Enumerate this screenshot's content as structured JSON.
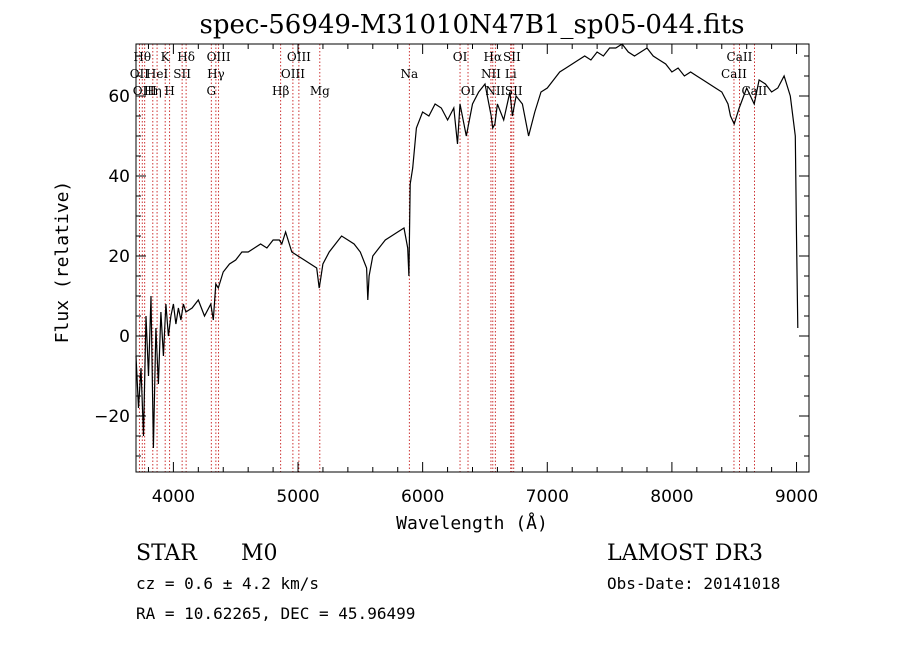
{
  "chart_data": {
    "type": "line",
    "title": "spec-56949-M31010N47B1_sp05-044.fits",
    "xlabel": "Wavelength (Å)",
    "ylabel": "Flux (relative)",
    "xlim": [
      3700,
      9100
    ],
    "ylim": [
      -34,
      73
    ],
    "xticks": [
      4000,
      5000,
      6000,
      7000,
      8000,
      9000
    ],
    "yticks": [
      -20,
      0,
      20,
      40,
      60
    ],
    "series": [
      {
        "name": "flux",
        "x": [
          3700,
          3720,
          3740,
          3760,
          3780,
          3800,
          3820,
          3840,
          3860,
          3880,
          3900,
          3920,
          3940,
          3960,
          3980,
          4000,
          4020,
          4040,
          4060,
          4080,
          4100,
          4150,
          4200,
          4250,
          4300,
          4320,
          4340,
          4360,
          4400,
          4450,
          4500,
          4550,
          4600,
          4650,
          4700,
          4750,
          4800,
          4850,
          4870,
          4900,
          4950,
          5000,
          5050,
          5100,
          5150,
          5170,
          5180,
          5200,
          5250,
          5300,
          5350,
          5400,
          5450,
          5500,
          5550,
          5560,
          5570,
          5600,
          5650,
          5700,
          5750,
          5800,
          5850,
          5880,
          5890,
          5900,
          5920,
          5950,
          6000,
          6050,
          6100,
          6150,
          6200,
          6250,
          6280,
          6300,
          6350,
          6400,
          6450,
          6500,
          6550,
          6562,
          6580,
          6600,
          6650,
          6700,
          6720,
          6750,
          6800,
          6850,
          6900,
          6950,
          7000,
          7050,
          7100,
          7150,
          7200,
          7250,
          7300,
          7350,
          7400,
          7450,
          7500,
          7550,
          7600,
          7650,
          7700,
          7750,
          7800,
          7850,
          7900,
          7950,
          8000,
          8050,
          8100,
          8150,
          8200,
          8250,
          8300,
          8350,
          8400,
          8450,
          8470,
          8500,
          8540,
          8600,
          8660,
          8700,
          8750,
          8800,
          8850,
          8900,
          8950,
          8990,
          9000,
          9010
        ],
        "values": [
          -5,
          -18,
          -8,
          -25,
          5,
          -10,
          10,
          -28,
          2,
          -12,
          6,
          -5,
          8,
          0,
          5,
          8,
          3,
          7,
          4,
          8,
          6,
          7,
          9,
          5,
          8,
          4,
          13,
          12,
          16,
          18,
          19,
          21,
          21,
          22,
          23,
          22,
          24,
          24,
          23,
          26,
          21,
          20,
          19,
          18,
          17,
          12,
          14,
          18,
          21,
          23,
          25,
          24,
          23,
          21,
          17,
          9,
          15,
          20,
          22,
          24,
          25,
          26,
          27,
          22,
          15,
          38,
          42,
          52,
          56,
          55,
          58,
          57,
          54,
          57,
          48,
          58,
          50,
          58,
          61,
          63,
          55,
          52,
          53,
          58,
          54,
          61,
          55,
          60,
          58,
          50,
          56,
          61,
          62,
          64,
          66,
          67,
          68,
          69,
          70,
          69,
          71,
          70,
          72,
          72,
          73,
          71,
          70,
          71,
          72,
          70,
          69,
          68,
          66,
          67,
          65,
          66,
          65,
          64,
          63,
          62,
          61,
          58,
          55,
          53,
          57,
          62,
          58,
          64,
          63,
          61,
          62,
          65,
          60,
          50,
          25,
          2
        ]
      }
    ],
    "spectral_lines": [
      {
        "wavelength": 3727,
        "label": "OII",
        "row": 2
      },
      {
        "wavelength": 3750,
        "label": "Hθ",
        "row": 1
      },
      {
        "wavelength": 3770,
        "label": "OIII",
        "row": 3
      },
      {
        "wavelength": 3835,
        "label": "Hη",
        "row": 3
      },
      {
        "wavelength": 3869,
        "label": "HeI",
        "row": 2
      },
      {
        "wavelength": 3934,
        "label": "K",
        "row": 1
      },
      {
        "wavelength": 3970,
        "label": "H",
        "row": 3
      },
      {
        "wavelength": 4070,
        "label": "SII",
        "row": 2
      },
      {
        "wavelength": 4102,
        "label": "Hδ",
        "row": 1
      },
      {
        "wavelength": 4304,
        "label": "G",
        "row": 3
      },
      {
        "wavelength": 4341,
        "label": "Hγ",
        "row": 2
      },
      {
        "wavelength": 4363,
        "label": "OIII",
        "row": 1
      },
      {
        "wavelength": 4861,
        "label": "Hβ",
        "row": 3
      },
      {
        "wavelength": 4959,
        "label": "OIII",
        "row": 2
      },
      {
        "wavelength": 5007,
        "label": "OIII",
        "row": 1
      },
      {
        "wavelength": 5175,
        "label": "Mg",
        "row": 3
      },
      {
        "wavelength": 5893,
        "label": "Na",
        "row": 2
      },
      {
        "wavelength": 6300,
        "label": "OI",
        "row": 1
      },
      {
        "wavelength": 6364,
        "label": "OI",
        "row": 3
      },
      {
        "wavelength": 6548,
        "label": "NII",
        "row": 2
      },
      {
        "wavelength": 6563,
        "label": "Hα",
        "row": 1
      },
      {
        "wavelength": 6583,
        "label": "NII",
        "row": 3
      },
      {
        "wavelength": 6707,
        "label": "Li",
        "row": 2
      },
      {
        "wavelength": 6716,
        "label": "SII",
        "row": 1
      },
      {
        "wavelength": 6731,
        "label": "SII",
        "row": 3
      },
      {
        "wavelength": 8498,
        "label": "CaII",
        "row": 2
      },
      {
        "wavelength": 8542,
        "label": "CaII",
        "row": 1
      },
      {
        "wavelength": 8662,
        "label": "CaII",
        "row": 3
      }
    ]
  },
  "info": {
    "class": "STAR",
    "subclass": "M0",
    "survey": "LAMOST DR3",
    "cz": "cz = 0.6 ± 4.2 km/s",
    "obs_date": "Obs-Date: 20141018",
    "coords": "RA =  10.62265, DEC =  45.96499"
  }
}
